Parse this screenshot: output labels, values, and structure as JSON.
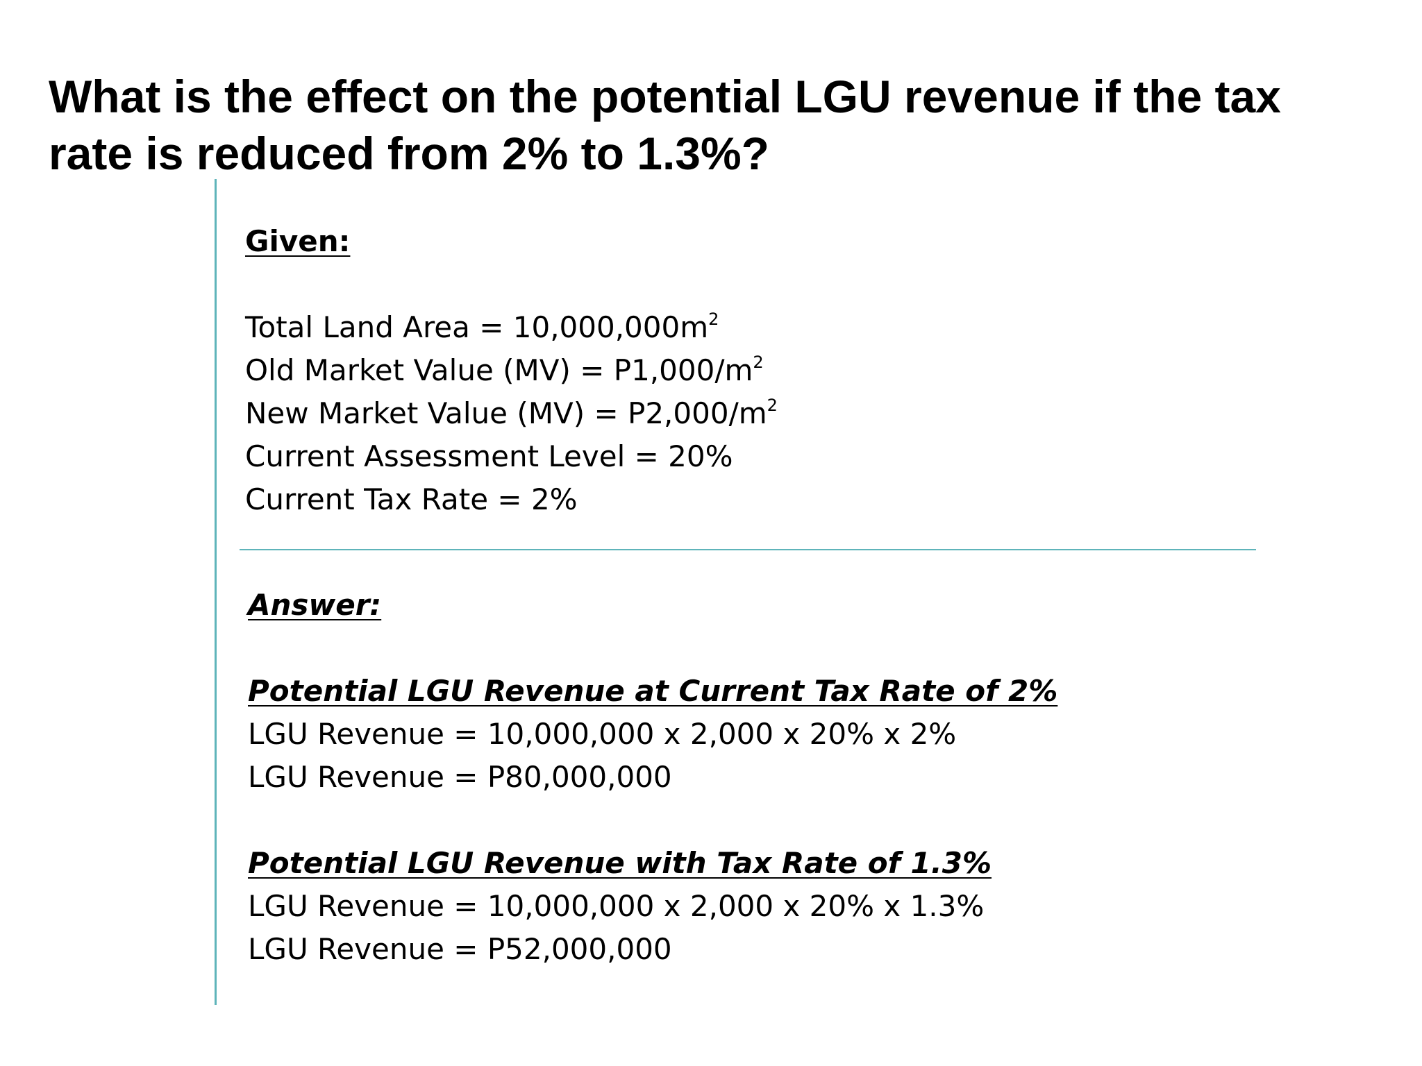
{
  "title": "What is the effect on the potential LGU revenue if the tax rate is reduced from 2% to 1.3%?",
  "given": {
    "heading": "Given:",
    "items": [
      {
        "text": "Total Land Area = 10,000,000m",
        "sup": "2"
      },
      {
        "text": "Old Market Value (MV) = P1,000/m",
        "sup": "2"
      },
      {
        "text": "New Market Value (MV) = P2,000/m",
        "sup": "2"
      },
      {
        "text": "Current Assessment Level = 20%",
        "sup": ""
      },
      {
        "text": "Current Tax Rate = 2%",
        "sup": ""
      }
    ]
  },
  "answer": {
    "heading": "Answer:",
    "sections": [
      {
        "heading": "Potential LGU Revenue at Current Tax Rate of 2%",
        "formula": "LGU Revenue = 10,000,000 x 2,000 x 20%  x 2%",
        "result": "LGU Revenue = P80,000,000"
      },
      {
        "heading": "Potential LGU Revenue with Tax Rate of 1.3%",
        "formula": "LGU Revenue = 10,000,000 x 2,000 x 20%  x 1.3%",
        "result": "LGU Revenue = P52,000,000"
      }
    ]
  },
  "colors": {
    "rule": "#5eb4ba",
    "text": "#000000",
    "background": "#ffffff"
  }
}
